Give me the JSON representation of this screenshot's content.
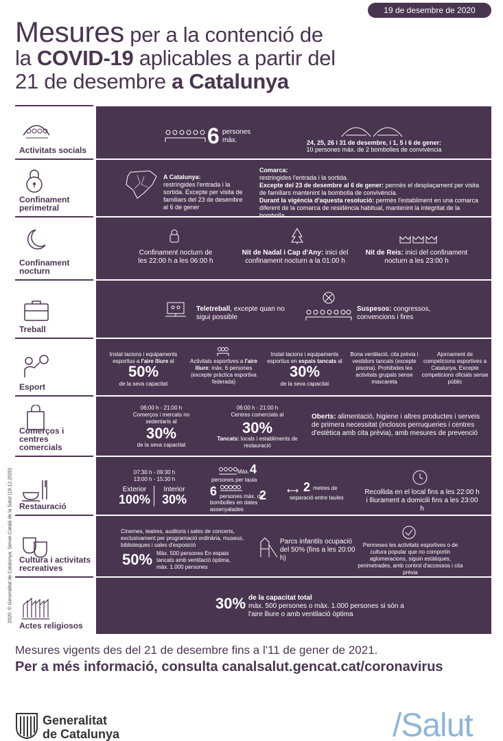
{
  "date": "19 de desembre de 2020",
  "title": {
    "l1a": "Mesures",
    "l1b": " per a la contenció de",
    "l2a": "la ",
    "l2b": "COVID-19",
    "l2c": " aplicables a partir del",
    "l3a": "21 de desembre ",
    "l3b": "a Catalunya"
  },
  "credit": "2020. © Generalitat de Catalunya. Servei Català de la Salut (19.12.2020)",
  "rows": {
    "social": {
      "label": "Activitats socials",
      "num": "6",
      "people": "persones",
      "max": "màx.",
      "dates": "24, 25, 26 i 31 de desembre, i 1, 5 i 6 de gener:",
      "dates_note": "10 persones màx. de 2 bombolles de convivència"
    },
    "perimetral": {
      "label1": "Confinament",
      "label2": "perimetral",
      "cat_title": "A Catalunya:",
      "cat_text": "restringides l'entrada i la sortida. Excepte per visita de familiars del 23 de desembre al 6 de gener",
      "com_title": "Comarca:",
      "com_text1": "restringides l'entrada i la sortida.",
      "com_b2": "Excepte del 23 de desembre al 6 de gener:",
      "com_text2": " permès el desplaçament per visita de familiars mantenint la bombolla de convivència.",
      "com_b3": "Durant la vigència d'aquesta resolució:",
      "com_text3": " permès l'establiment en una comarca diferent de la comarca de residència habitual, mantenint la integritat de la bombolla."
    },
    "nocturn": {
      "label1": "Confinament",
      "label2": "nocturn",
      "a": "Confinament nocturn de les 22:00 h a les 06:00 h",
      "b_bold": "Nit de Nadal i Cap d'Any:",
      "b_text": " inici del confinament nocturn a la 01:00 h",
      "c_bold": "Nit de Reis:",
      "c_text": " inici del confinament nocturn a les 23:00 h"
    },
    "treball": {
      "label": "Treball",
      "a_bold": "Teletreball",
      "a_text": ", excepte quan no sigui possible",
      "b_bold": "Suspesos:",
      "b_text": " congressos, convencions i fires"
    },
    "esport": {
      "label": "Esport",
      "a_pre": "Instal·lacions i equipaments esportius a ",
      "a_bold": "l'aire lliure",
      "a_post": " al",
      "a_pct": "50%",
      "a_sub": "de la seva capacitat",
      "b_pre": "Activitats esportives a ",
      "b_bold": "l'aire lliure",
      "b_text": ": màx. 6 persones (excepte pràctica esportiva federada)",
      "c_pre": "Instal·lacions i equipaments esportius en ",
      "c_bold": "espais tancats",
      "c_post": " al",
      "c_pct": "30%",
      "c_sub": "de la seva capacitat",
      "d": "Bona ventilació, cita prèvia i vestidors tancats (excepte piscina). Prohibides les activitats grupals sense mascareta",
      "e": "Ajornament de competicions esportives a Catalunya. Excepte competicions oficials sense públic"
    },
    "comercos": {
      "label1": "Comerços i",
      "label2": "centres comercials",
      "a_time": "06:00 h - 21:00 h",
      "a_text": "Comerços i mercats no sedentaris al",
      "a_pct": "30%",
      "a_sub": "de la seva capacitat",
      "b_time": "06:00 h - 21:00 h",
      "b_text": "Centres comercials al",
      "b_pct": "30%",
      "b_bold": "Tancats:",
      "b_sub": " locals i establiments de restauració",
      "c_bold": "Oberts:",
      "c_text": " alimentació, higiene i altres productes i serveis de primera necessitat (inclosos perruqueries i centres d'estètica amb cita prèvia), amb mesures de prevenció"
    },
    "restauracio": {
      "label": "Restauració",
      "times1": "07:30 h - 09:30 h",
      "times2": "13:00 h - 15:30 h",
      "ext": "Exterior",
      "ext_pct": "100%",
      "int": "Interior",
      "int_pct": "30%",
      "max": "Màx.",
      "max_n": "4",
      "per_table": "persones per taula",
      "six": "6",
      "six_text": "persones màx. de",
      "two": "2",
      "bubbles": "bombolles en dates assenyalades",
      "dist_n": "2",
      "dist_t1": "metres de",
      "dist_t2": "separació entre taules",
      "pickup": "Recollida en el local fins a les 22:00 h i lliurament a domicili fins a les 23:00 h"
    },
    "cultura": {
      "label1": "Cultura i activitats",
      "label2": "recreatives",
      "a": "Cinemes, teatres, auditoris i sales de concerts, exclusivament per programació ordinària, museus, biblioteques i sales d'exposició",
      "a_pct": "50%",
      "a_sub": "Màx. 500 persones En espais tancats amb ventilació òptima, màx. 1.000 persones",
      "b": "Parcs infantils ocupació del 50% (fins a les 20:00 h)",
      "c": "Permeses les activitats esportives o de cultura popular que no comportin aglomeracions, siguin estàtiques, perimetrades, amb control d'accessos i cita prèvia"
    },
    "religiosos": {
      "label": "Actes religiosos",
      "pct": "30%",
      "bold": "de la capacitat total",
      "text": "màx. 500 persones o màx. 1.000 persones si són a l'aire lliure o amb ventilació òptima"
    }
  },
  "footer": {
    "line1": "Mesures vigents des del 21 de desembre fins a l'11 de gener de 2021.",
    "line2": "Per a més informació, consulta canalsalut.gencat.cat/coronavirus"
  },
  "logo": {
    "gen1": "Generalitat",
    "gen2": "de Catalunya",
    "salut": "/Salut"
  },
  "colors": {
    "primary": "#4a3550",
    "accent": "#8fb5d8"
  }
}
